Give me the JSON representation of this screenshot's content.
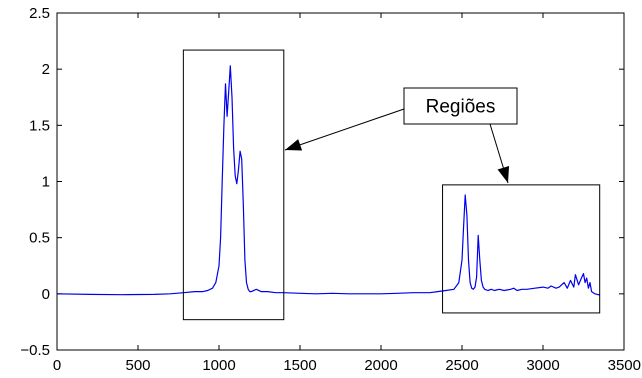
{
  "chart_data": {
    "type": "line",
    "title": "",
    "xlabel": "",
    "ylabel": "",
    "xlim": [
      0,
      3500
    ],
    "ylim": [
      -0.5,
      2.5
    ],
    "xticks": [
      0,
      500,
      1000,
      1500,
      2000,
      2500,
      3000,
      3500
    ],
    "xtick_labels": [
      "0",
      "500",
      "1000",
      "1500",
      "2000",
      "2500",
      "3000",
      "3500"
    ],
    "yticks": [
      -0.5,
      0,
      0.5,
      1,
      1.5,
      2,
      2.5
    ],
    "ytick_labels": [
      "−0.5",
      "0",
      "0.5",
      "1",
      "1.5",
      "2",
      "2.5"
    ],
    "grid": false,
    "series_color": "#0000ee",
    "series": [
      {
        "x": [
          0,
          200,
          400,
          600,
          700,
          780,
          850,
          900,
          930,
          960,
          980,
          1000,
          1010,
          1020,
          1030,
          1040,
          1050,
          1060,
          1070,
          1080,
          1090,
          1100,
          1110,
          1120,
          1130,
          1140,
          1150,
          1160,
          1170,
          1180,
          1190,
          1200,
          1230,
          1260,
          1300,
          1350,
          1400,
          1500,
          1600,
          1700,
          1800,
          1900,
          2000,
          2100,
          2200,
          2300,
          2350,
          2400,
          2450,
          2480,
          2500,
          2510,
          2520,
          2530,
          2540,
          2550,
          2560,
          2570,
          2580,
          2590,
          2600,
          2610,
          2620,
          2630,
          2640,
          2660,
          2680,
          2700,
          2730,
          2760,
          2800,
          2820,
          2840,
          2870,
          2900,
          2950,
          3000,
          3030,
          3050,
          3080,
          3100,
          3130,
          3150,
          3170,
          3190,
          3200,
          3220,
          3240,
          3250,
          3260,
          3270,
          3280,
          3290,
          3300,
          3320,
          3350
        ],
        "y": [
          0.0,
          -0.005,
          -0.008,
          -0.005,
          0.0,
          0.01,
          0.02,
          0.02,
          0.03,
          0.05,
          0.1,
          0.25,
          0.5,
          1.0,
          1.5,
          1.87,
          1.58,
          1.8,
          2.03,
          1.75,
          1.3,
          1.05,
          0.98,
          1.1,
          1.27,
          1.2,
          0.8,
          0.3,
          0.1,
          0.04,
          0.02,
          0.02,
          0.04,
          0.02,
          0.02,
          0.01,
          0.01,
          0.005,
          0.0,
          0.005,
          0.0,
          0.0,
          0.0,
          0.005,
          0.01,
          0.01,
          0.02,
          0.03,
          0.04,
          0.1,
          0.3,
          0.6,
          0.88,
          0.7,
          0.3,
          0.1,
          0.05,
          0.04,
          0.06,
          0.15,
          0.52,
          0.3,
          0.12,
          0.06,
          0.04,
          0.03,
          0.04,
          0.03,
          0.04,
          0.03,
          0.04,
          0.05,
          0.03,
          0.04,
          0.04,
          0.05,
          0.06,
          0.05,
          0.07,
          0.05,
          0.06,
          0.1,
          0.05,
          0.12,
          0.06,
          0.17,
          0.08,
          0.15,
          0.18,
          0.1,
          0.14,
          0.05,
          0.1,
          0.02,
          0.0,
          -0.01
        ]
      }
    ],
    "annotations": [
      {
        "type": "box",
        "x": [
          780,
          1400
        ],
        "y": [
          -0.23,
          2.17
        ]
      },
      {
        "type": "box",
        "x": [
          2380,
          3350
        ],
        "y": [
          -0.17,
          0.97
        ]
      },
      {
        "type": "label",
        "text": "Regiões"
      }
    ]
  }
}
